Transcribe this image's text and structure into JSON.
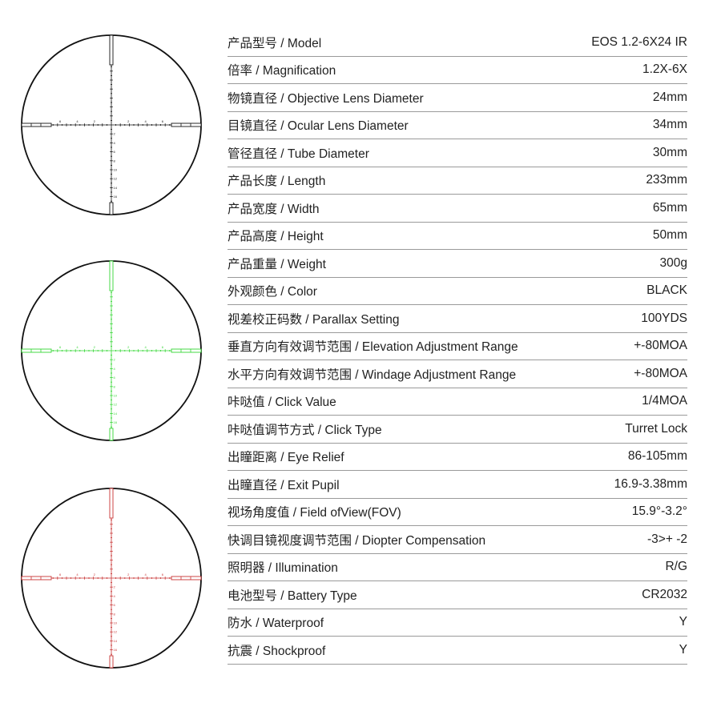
{
  "reticles": [
    {
      "name": "black",
      "color": "#111111"
    },
    {
      "name": "green",
      "color": "#33d633"
    },
    {
      "name": "red",
      "color": "#c83232"
    }
  ],
  "reticle_labels": {
    "horizontal": [
      "6",
      "4",
      "2",
      "2",
      "4",
      "6"
    ],
    "vertical": [
      "2",
      "4",
      "6",
      "8",
      "10",
      "12",
      "14",
      "16"
    ]
  },
  "specs": [
    {
      "label": "产品型号 / Model",
      "value": "EOS 1.2-6X24 IR"
    },
    {
      "label": "倍率 / Magnification",
      "value": "1.2X-6X"
    },
    {
      "label": "物镜直径 / Objective Lens Diameter",
      "value": "24mm"
    },
    {
      "label": "目镜直径 / Ocular Lens Diameter",
      "value": "34mm"
    },
    {
      "label": "管径直径 / Tube Diameter",
      "value": "30mm"
    },
    {
      "label": "产品长度 / Length",
      "value": "233mm"
    },
    {
      "label": "产品宽度 / Width",
      "value": "65mm"
    },
    {
      "label": "产品高度 / Height",
      "value": "50mm"
    },
    {
      "label": "产品重量 / Weight",
      "value": "300g"
    },
    {
      "label": "外观颜色 / Color",
      "value": "BLACK"
    },
    {
      "label": "视差校正码数 / Parallax Setting",
      "value": "100YDS"
    },
    {
      "label": "垂直方向有效调节范围 / Elevation Adjustment Range",
      "value": "+-80MOA"
    },
    {
      "label": "水平方向有效调节范围 / Windage Adjustment Range",
      "value": "+-80MOA"
    },
    {
      "label": "咔哒值 / Click Value",
      "value": "1/4MOA"
    },
    {
      "label": "咔哒值调节方式 / Click Type",
      "value": "Turret Lock"
    },
    {
      "label": "出瞳距离 / Eye Relief",
      "value": "86-105mm"
    },
    {
      "label": "出瞳直径 / Exit Pupil",
      "value": "16.9-3.38mm"
    },
    {
      "label": "视场角度值 / Field ofView(FOV)",
      "value": "15.9°-3.2°"
    },
    {
      "label": "快调目镜视度调节范围 / Diopter Compensation",
      "value": "-3>+ -2"
    },
    {
      "label": "照明器 / Illumination",
      "value": "R/G"
    },
    {
      "label": "电池型号 / Battery Type",
      "value": "CR2032"
    },
    {
      "label": "防水 / Waterproof",
      "value": "Y"
    },
    {
      "label": "抗震 / Shockproof",
      "value": "Y"
    }
  ]
}
